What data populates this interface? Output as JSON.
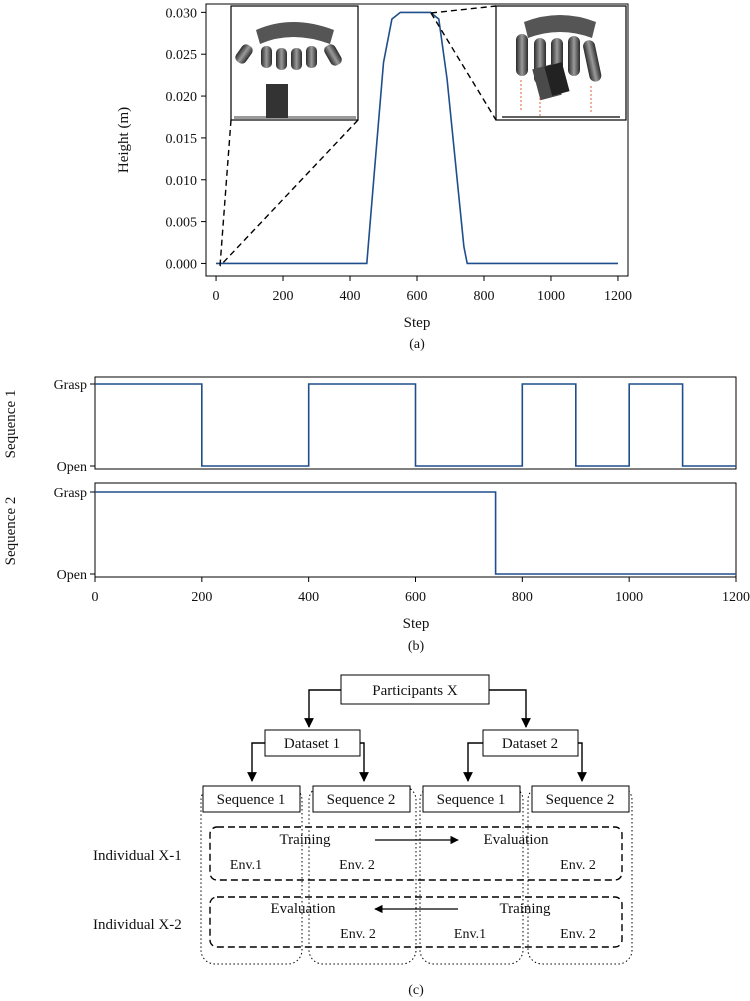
{
  "colors": {
    "line": "#1f4e8c",
    "axis": "#000000"
  },
  "chart_data": [
    {
      "id": "a",
      "type": "line",
      "panel_label": "(a)",
      "xlabel": "Step",
      "ylabel": "Height (m)",
      "xlim": [
        -30,
        1230
      ],
      "ylim": [
        -0.0015,
        0.031
      ],
      "x_ticks": [
        0,
        200,
        400,
        600,
        800,
        1000,
        1200
      ],
      "y_ticks": [
        0.0,
        0.005,
        0.01,
        0.015,
        0.02,
        0.025,
        0.03
      ],
      "y_tick_labels": [
        "0.000",
        "0.005",
        "0.010",
        "0.015",
        "0.020",
        "0.025",
        "0.030"
      ],
      "series": [
        {
          "x": [
            0,
            450,
            475,
            500,
            525,
            550,
            640,
            665,
            690,
            715,
            740,
            750,
            1200
          ],
          "y": [
            0,
            0,
            0.012,
            0.024,
            0.0292,
            0.03,
            0.03,
            0.0292,
            0.022,
            0.012,
            0.002,
            0,
            0
          ]
        }
      ],
      "insets": [
        {
          "name": "hand-open-inset",
          "anchor": [
            0,
            0
          ]
        },
        {
          "name": "hand-grasp-inset",
          "anchor": [
            640,
            0.03
          ]
        }
      ]
    },
    {
      "id": "b",
      "type": "line",
      "panel_label": "(b)",
      "xlabel": "Step",
      "xlim": [
        0,
        1200
      ],
      "x_ticks": [
        0,
        200,
        400,
        600,
        800,
        1000,
        1200
      ],
      "y_categories": [
        "Open",
        "Grasp"
      ],
      "subplots": [
        {
          "ylabel": "Sequence 1",
          "x": [
            0,
            200,
            200,
            400,
            400,
            600,
            600,
            800,
            800,
            900,
            900,
            1000,
            1000,
            1100,
            1100,
            1200
          ],
          "y": [
            1,
            1,
            0,
            0,
            1,
            1,
            0,
            0,
            1,
            1,
            0,
            0,
            1,
            1,
            0,
            0
          ]
        },
        {
          "ylabel": "Sequence 2",
          "x": [
            0,
            750,
            750,
            1200
          ],
          "y": [
            1,
            1,
            0,
            0
          ]
        }
      ]
    }
  ],
  "diagram": {
    "panel_label": "(c)",
    "root": "Participants X",
    "datasets": [
      "Dataset 1",
      "Dataset 2"
    ],
    "sequences": [
      "Sequence 1",
      "Sequence 2",
      "Sequence 1",
      "Sequence 2"
    ],
    "rows": [
      {
        "label": "Individual X-1",
        "left_phase": "Training",
        "right_phase": "Evaluation",
        "envs": [
          "Env.1",
          "Env. 2",
          "Env. 2"
        ]
      },
      {
        "label": "Individual X-2",
        "left_phase": "Evaluation",
        "right_phase": "Training",
        "envs": [
          "Env. 2",
          "Env.1",
          "Env. 2"
        ]
      }
    ]
  }
}
